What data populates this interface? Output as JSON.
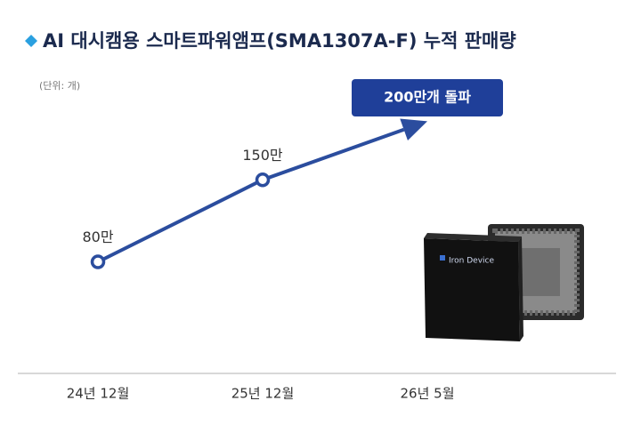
{
  "chart_data": {
    "type": "line",
    "title": "AI 대시캠용 스마트파워앰프(SMA1307A-F) 누적 판매량",
    "unit_note": "(단위: 개)",
    "categories": [
      "24년 12월",
      "25년 12월",
      "26년 5월"
    ],
    "values": [
      80,
      150,
      200
    ],
    "value_labels": [
      "80만",
      "150만",
      "200만개 돌파"
    ],
    "color": "#2b4d9e",
    "ylim": [
      0,
      220
    ]
  }
}
